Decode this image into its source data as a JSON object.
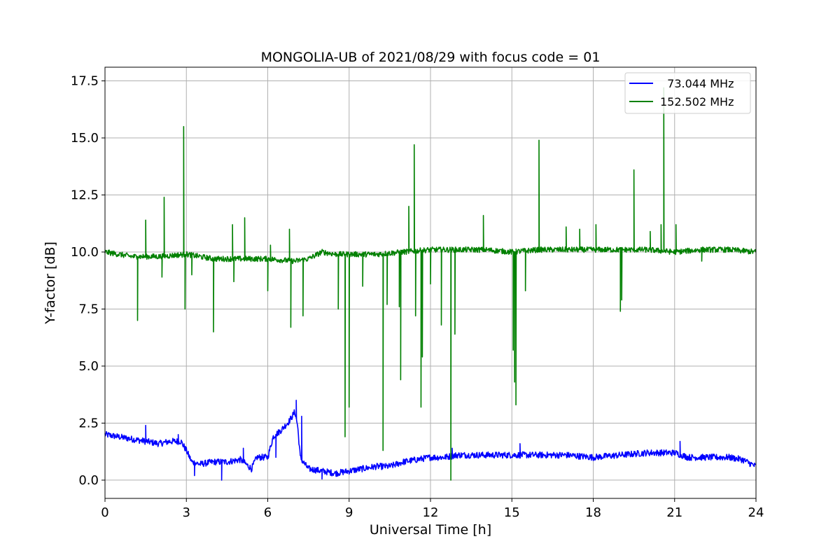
{
  "chart_data": {
    "type": "line",
    "title": "MONGOLIA-UB of 2021/08/29 with focus code = 01",
    "xlabel": "Universal Time [h]",
    "ylabel": "Y-factor [dB]",
    "xlim": [
      0,
      24
    ],
    "ylim": [
      -0.8,
      18.1
    ],
    "xticks": [
      0,
      3,
      6,
      9,
      12,
      15,
      18,
      21,
      24
    ],
    "xtick_labels": [
      "0",
      "3",
      "6",
      "9",
      "12",
      "15",
      "18",
      "21",
      "24"
    ],
    "yticks": [
      0.0,
      2.5,
      5.0,
      7.5,
      10.0,
      12.5,
      15.0,
      17.5
    ],
    "ytick_labels": [
      "0.0",
      "2.5",
      "5.0",
      "7.5",
      "10.0",
      "12.5",
      "15.0",
      "17.5"
    ],
    "grid": true,
    "legend_position": "upper right",
    "series": [
      {
        "name": "  73.044 MHz",
        "color": "#0000ff",
        "baseline": {
          "x": [
            0,
            0.5,
            1.0,
            1.5,
            2.0,
            2.4,
            2.8,
            3.0,
            3.2,
            3.5,
            4.0,
            4.5,
            5.0,
            5.4,
            5.6,
            6.0,
            6.2,
            6.5,
            6.8,
            7.0,
            7.1,
            7.2,
            7.3,
            7.5,
            8.0,
            8.5,
            9.0,
            9.5,
            10.0,
            10.5,
            11.0,
            11.5,
            12.0,
            12.5,
            13.0,
            14.0,
            15.0,
            16.0,
            17.0,
            18.0,
            19.0,
            20.0,
            21.0,
            21.5,
            22.0,
            23.0,
            23.5,
            24.0
          ],
          "y": [
            2.0,
            1.9,
            1.8,
            1.7,
            1.6,
            1.7,
            1.7,
            1.3,
            0.8,
            0.7,
            0.8,
            0.8,
            0.9,
            0.5,
            1.0,
            1.0,
            1.9,
            2.2,
            2.6,
            3.0,
            2.4,
            1.0,
            0.8,
            0.5,
            0.4,
            0.3,
            0.4,
            0.5,
            0.6,
            0.6,
            0.8,
            0.9,
            1.0,
            1.0,
            1.1,
            1.1,
            1.1,
            1.1,
            1.1,
            1.0,
            1.1,
            1.2,
            1.2,
            1.0,
            1.0,
            1.0,
            0.9,
            0.6
          ]
        },
        "spikes": [
          {
            "x": 1.5,
            "y": 2.4
          },
          {
            "x": 2.7,
            "y": 2.0
          },
          {
            "x": 3.3,
            "y": 0.2
          },
          {
            "x": 4.3,
            "y": 0.0
          },
          {
            "x": 5.1,
            "y": 1.4
          },
          {
            "x": 6.3,
            "y": 1.0
          },
          {
            "x": 7.05,
            "y": 3.5
          },
          {
            "x": 7.25,
            "y": 2.8
          },
          {
            "x": 8.0,
            "y": 0.05
          },
          {
            "x": 12.8,
            "y": 1.4
          },
          {
            "x": 15.3,
            "y": 1.6
          },
          {
            "x": 21.2,
            "y": 1.7
          }
        ],
        "noise": 0.14
      },
      {
        "name": "152.502 MHz",
        "color": "#008000",
        "baseline": {
          "x": [
            0,
            1.0,
            2.0,
            3.0,
            4.0,
            5.0,
            6.0,
            7.0,
            7.5,
            8.0,
            8.5,
            9.0,
            10.0,
            11.0,
            12.0,
            13.0,
            14.0,
            15.0,
            16.0,
            17.0,
            18.0,
            19.0,
            20.0,
            21.0,
            22.0,
            23.0,
            24.0
          ],
          "y": [
            10.0,
            9.8,
            9.8,
            9.9,
            9.7,
            9.7,
            9.7,
            9.6,
            9.7,
            10.0,
            9.9,
            9.9,
            9.9,
            10.0,
            10.1,
            10.1,
            10.1,
            10.0,
            10.1,
            10.1,
            10.1,
            10.1,
            10.1,
            10.0,
            10.1,
            10.1,
            10.0
          ]
        },
        "spikes": [
          {
            "x": 1.2,
            "y": 7.0
          },
          {
            "x": 1.5,
            "y": 11.4
          },
          {
            "x": 2.1,
            "y": 8.9
          },
          {
            "x": 2.18,
            "y": 12.4
          },
          {
            "x": 2.9,
            "y": 15.5
          },
          {
            "x": 2.95,
            "y": 7.5
          },
          {
            "x": 3.2,
            "y": 9.0
          },
          {
            "x": 4.0,
            "y": 6.5
          },
          {
            "x": 4.7,
            "y": 11.2
          },
          {
            "x": 4.75,
            "y": 8.7
          },
          {
            "x": 5.15,
            "y": 11.5
          },
          {
            "x": 6.0,
            "y": 8.3
          },
          {
            "x": 6.1,
            "y": 10.3
          },
          {
            "x": 6.8,
            "y": 11.0
          },
          {
            "x": 6.85,
            "y": 6.7
          },
          {
            "x": 7.3,
            "y": 7.2
          },
          {
            "x": 8.6,
            "y": 7.5
          },
          {
            "x": 8.85,
            "y": 1.9
          },
          {
            "x": 9.0,
            "y": 3.2
          },
          {
            "x": 9.5,
            "y": 8.5
          },
          {
            "x": 10.25,
            "y": 1.3
          },
          {
            "x": 10.4,
            "y": 7.7
          },
          {
            "x": 10.85,
            "y": 7.6
          },
          {
            "x": 10.9,
            "y": 4.4
          },
          {
            "x": 11.2,
            "y": 12.0
          },
          {
            "x": 11.4,
            "y": 14.7
          },
          {
            "x": 11.45,
            "y": 7.2
          },
          {
            "x": 11.65,
            "y": 3.2
          },
          {
            "x": 11.7,
            "y": 5.4
          },
          {
            "x": 12.0,
            "y": 8.6
          },
          {
            "x": 12.4,
            "y": 6.8
          },
          {
            "x": 12.75,
            "y": 0.0
          },
          {
            "x": 12.9,
            "y": 6.4
          },
          {
            "x": 13.95,
            "y": 11.6
          },
          {
            "x": 15.05,
            "y": 5.7
          },
          {
            "x": 15.1,
            "y": 4.3
          },
          {
            "x": 15.15,
            "y": 3.3
          },
          {
            "x": 15.5,
            "y": 8.3
          },
          {
            "x": 16.0,
            "y": 14.9
          },
          {
            "x": 17.0,
            "y": 11.1
          },
          {
            "x": 17.5,
            "y": 11.0
          },
          {
            "x": 18.1,
            "y": 11.2
          },
          {
            "x": 19.0,
            "y": 7.4
          },
          {
            "x": 19.05,
            "y": 7.9
          },
          {
            "x": 19.5,
            "y": 13.6
          },
          {
            "x": 20.1,
            "y": 10.9
          },
          {
            "x": 20.5,
            "y": 11.2
          },
          {
            "x": 20.6,
            "y": 17.2
          },
          {
            "x": 21.05,
            "y": 11.2
          },
          {
            "x": 22.0,
            "y": 9.6
          }
        ],
        "noise": 0.12
      }
    ]
  }
}
